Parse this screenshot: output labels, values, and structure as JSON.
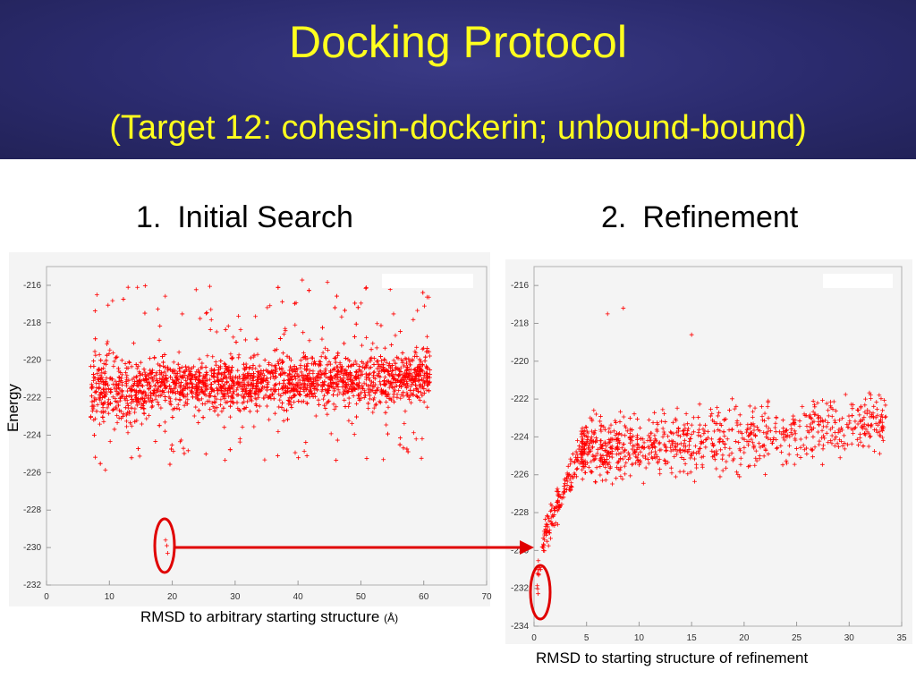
{
  "slide": {
    "title": "Docking Protocol",
    "subtitle": "(Target 12: cohesin-dockerin; unbound-bound)",
    "left_heading": {
      "number": "1.",
      "text": "Initial Search"
    },
    "right_heading": {
      "number": "2.",
      "text": "Refinement"
    },
    "y_axis_label": "Energy",
    "left_x_label": "RMSD to arbitrary starting structure",
    "left_x_unit": "(Å)",
    "right_x_label": "RMSD to starting structure of refinement",
    "highlight_color": "#e00000",
    "title_color": "#ffff1e"
  },
  "chart_data": [
    {
      "type": "scatter",
      "title": "",
      "xlabel": "RMSD to arbitrary starting structure (Å)",
      "ylabel": "Energy",
      "xlim": [
        0,
        70
      ],
      "ylim": [
        -232,
        -215
      ],
      "xticks": [
        0,
        10,
        20,
        30,
        40,
        50,
        60,
        70
      ],
      "yticks": [
        -216,
        -218,
        -220,
        -222,
        -224,
        -226,
        -228,
        -230,
        -232
      ],
      "marker": "+",
      "color": "#ff0000",
      "grid": false,
      "cluster_summary": {
        "x_range": [
          5,
          62
        ],
        "y_range": [
          -226,
          -215
        ],
        "dense_band_y": [
          -223.5,
          -219.5
        ]
      },
      "highlight": {
        "x": 19,
        "y": [
          -229.5,
          -230.3
        ]
      }
    },
    {
      "type": "scatter",
      "title": "",
      "xlabel": "RMSD to starting structure of refinement",
      "ylabel": "Energy",
      "xlim": [
        0,
        35
      ],
      "ylim": [
        -234,
        -215
      ],
      "xticks": [
        0,
        5,
        10,
        15,
        20,
        25,
        30,
        35
      ],
      "yticks": [
        -216,
        -218,
        -220,
        -222,
        -224,
        -226,
        -228,
        -230,
        -232,
        -234
      ],
      "marker": "+",
      "color": "#ff0000",
      "grid": false,
      "cluster_summary": {
        "x_range": [
          0.3,
          34.5
        ],
        "y_range": [
          -233,
          -217
        ]
      },
      "outliers": [
        {
          "x": 7,
          "y": -217.5
        },
        {
          "x": 8.5,
          "y": -217.2
        },
        {
          "x": 15,
          "y": -218.6
        }
      ],
      "highlight": {
        "x": 0.8,
        "y": [
          -231,
          -233
        ]
      }
    }
  ]
}
